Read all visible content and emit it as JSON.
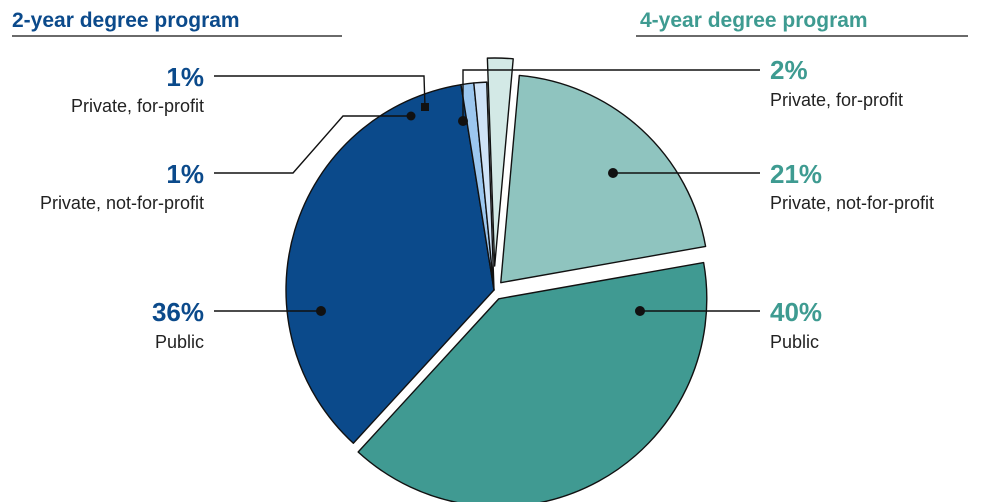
{
  "chart_data": {
    "type": "pie",
    "groups": [
      {
        "title": "2-year degree program",
        "color": "#0b4a8b",
        "slices": [
          {
            "category": "Private, for-profit",
            "value": 1,
            "label": "1%",
            "color": "#cfe3f7"
          },
          {
            "category": "Private, not-for-profit",
            "value": 1,
            "label": "1%",
            "color": "#9cc7ef"
          },
          {
            "category": "Public",
            "value": 36,
            "label": "36%",
            "color": "#0b4a8b"
          }
        ]
      },
      {
        "title": "4-year degree program",
        "color": "#3e9b91",
        "slices": [
          {
            "category": "Private, for-profit",
            "value": 2,
            "label": "2%",
            "color": "#d3e9e6"
          },
          {
            "category": "Private, not-for-profit",
            "value": 21,
            "label": "21%",
            "color": "#8fc4bf"
          },
          {
            "category": "Public",
            "value": 40,
            "label": "40%",
            "color": "#409a92"
          }
        ]
      }
    ]
  }
}
